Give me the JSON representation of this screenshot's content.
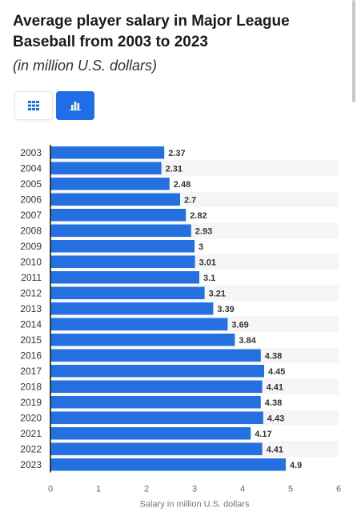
{
  "header": {
    "title": "Average player salary in Major League Baseball from 2003 to 2023",
    "subtitle": "(in million U.S. dollars)"
  },
  "controls": {
    "table_icon": "grid-icon",
    "chart_icon": "bar-chart-icon",
    "accent": "#1f6ee8"
  },
  "chart_data": {
    "type": "bar",
    "orientation": "horizontal",
    "categories": [
      "2003",
      "2004",
      "2005",
      "2006",
      "2007",
      "2008",
      "2009",
      "2010",
      "2011",
      "2012",
      "2013",
      "2014",
      "2015",
      "2016",
      "2017",
      "2018",
      "2019",
      "2020",
      "2021",
      "2022",
      "2023"
    ],
    "values": [
      2.37,
      2.31,
      2.48,
      2.7,
      2.82,
      2.93,
      3,
      3.01,
      3.1,
      3.21,
      3.39,
      3.69,
      3.84,
      4.38,
      4.45,
      4.41,
      4.38,
      4.43,
      4.17,
      4.41,
      4.9
    ],
    "value_labels": [
      "2.37",
      "2.31",
      "2.48",
      "2.7",
      "2.82",
      "2.93",
      "3",
      "3.01",
      "3.1",
      "3.21",
      "3.39",
      "3.69",
      "3.84",
      "4.38",
      "4.45",
      "4.41",
      "4.38",
      "4.43",
      "4.17",
      "4.41",
      "4.9"
    ],
    "xlabel": "Salary in million U.S. dollars",
    "ylabel": "",
    "xlim": [
      0,
      6
    ],
    "xticks": [
      "0",
      "1",
      "2",
      "3",
      "4",
      "5",
      "6"
    ],
    "grid": false,
    "alternating_row_bands": true,
    "bar_color": "#2470e0"
  }
}
